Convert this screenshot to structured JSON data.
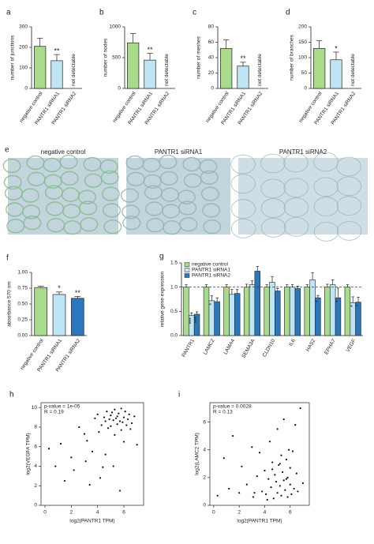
{
  "chart_data": [
    {
      "type": "bar",
      "label": "a",
      "ylabel": "number of junctions",
      "categories": [
        "negative control",
        "PANTR1 siRNA1",
        "PANTR1 siRNA2"
      ],
      "values": [
        205,
        135,
        null
      ],
      "errors": [
        40,
        30,
        null
      ],
      "colors": [
        "#a8dc8c",
        "#bfe4f3",
        "#bfe4f3"
      ],
      "annotations": [
        null,
        "**",
        null
      ],
      "na_label": "not detectable",
      "ylim": [
        0,
        300
      ],
      "yticks": [
        0,
        100,
        200,
        300
      ]
    },
    {
      "type": "bar",
      "label": "b",
      "ylabel": "number of nodes",
      "categories": [
        "negative control",
        "PANTR1 siRNA1",
        "PANTR1 siRNA2"
      ],
      "values": [
        740,
        460,
        null
      ],
      "errors": [
        150,
        110,
        null
      ],
      "colors": [
        "#a8dc8c",
        "#bfe4f3",
        "#bfe4f3"
      ],
      "annotations": [
        null,
        "**",
        null
      ],
      "na_label": "not detectable",
      "ylim": [
        0,
        1000
      ],
      "yticks": [
        0,
        500,
        1000
      ]
    },
    {
      "type": "bar",
      "label": "c",
      "ylabel": "number of meshes",
      "categories": [
        "negative control",
        "PANTR1 siRNA1",
        "PANTR1 siRNA2"
      ],
      "values": [
        52,
        29,
        null
      ],
      "errors": [
        11,
        5,
        null
      ],
      "colors": [
        "#a8dc8c",
        "#bfe4f3",
        "#bfe4f3"
      ],
      "annotations": [
        null,
        "**",
        null
      ],
      "na_label": "not detectable",
      "ylim": [
        0,
        80
      ],
      "yticks": [
        0,
        20,
        40,
        60,
        80
      ]
    },
    {
      "type": "bar",
      "label": "d",
      "ylabel": "number of branches",
      "categories": [
        "negative control",
        "PANTR1 siRNA1",
        "PANTR1 siRNA2"
      ],
      "values": [
        130,
        93,
        null
      ],
      "errors": [
        25,
        25,
        null
      ],
      "colors": [
        "#a8dc8c",
        "#bfe4f3",
        "#bfe4f3"
      ],
      "annotations": [
        null,
        "*",
        null
      ],
      "na_label": "not detectable",
      "ylim": [
        0,
        200
      ],
      "yticks": [
        0,
        50,
        100,
        150,
        200
      ]
    },
    {
      "type": "image",
      "label": "e",
      "titles": [
        "negative control",
        "PANTR1 siRNA1",
        "PANTR1 siRNA2"
      ]
    },
    {
      "type": "bar",
      "label": "f",
      "ylabel": "absorbance 570 nm",
      "categories": [
        "negative control",
        "PANTR1 siRNA1",
        "PANTR1 siRNA2"
      ],
      "values": [
        0.76,
        0.65,
        0.59
      ],
      "errors": [
        0.02,
        0.04,
        0.03
      ],
      "colors": [
        "#a8dc8c",
        "#bfe4f3",
        "#2a78bb"
      ],
      "annotations": [
        null,
        "*",
        "**"
      ],
      "ylim": [
        0,
        1.0
      ],
      "yticks": [
        {
          "value": 0,
          "label": "0.00"
        },
        {
          "value": 0.25,
          "label": "0.25"
        },
        {
          "value": 0.5,
          "label": "0.50"
        },
        {
          "value": 0.75,
          "label": "0.75"
        },
        {
          "value": 1,
          "label": "1.00"
        }
      ]
    },
    {
      "type": "grouped_bar",
      "label": "g",
      "ylabel": "relative gene expression",
      "categories": [
        "PANTR1",
        "LAMC2",
        "LAMA4",
        "SEMA3A",
        "CLDN10",
        "IL6",
        "HAS2",
        "EPHA7",
        "VEGF"
      ],
      "series": [
        {
          "name": "negative control",
          "color": "#a8dc8c",
          "values": [
            1,
            1,
            1,
            1,
            1,
            1,
            1,
            1,
            1
          ],
          "errors": [
            0.05,
            0.05,
            0.05,
            0.06,
            0.05,
            0.05,
            0.05,
            0.06,
            0.05
          ],
          "stars": [
            null,
            null,
            null,
            null,
            null,
            null,
            null,
            null,
            null
          ]
        },
        {
          "name": "PANTR1 siRNA1",
          "color": "#bfe4f3",
          "values": [
            0.42,
            0.72,
            0.85,
            1.05,
            1.1,
            1.0,
            1.15,
            1.05,
            0.68
          ],
          "errors": [
            0.05,
            0.1,
            0.1,
            0.08,
            0.12,
            0.05,
            0.15,
            0.1,
            0.12
          ],
          "stars": [
            "***",
            "*",
            null,
            null,
            null,
            null,
            null,
            null,
            "*"
          ]
        },
        {
          "name": "PANTR1 siRNA2",
          "color": "#2a78bb",
          "values": [
            0.44,
            0.7,
            0.87,
            1.33,
            0.92,
            0.97,
            0.78,
            0.78,
            0.69
          ],
          "errors": [
            0.05,
            0.08,
            0.08,
            0.1,
            0.05,
            0.05,
            0.05,
            0.2,
            0.1
          ],
          "stars": [
            "***",
            null,
            null,
            null,
            null,
            null,
            "*",
            "*",
            "*"
          ]
        }
      ],
      "hline": 1,
      "ylim": [
        0,
        1.5
      ],
      "yticks": [
        {
          "value": 0,
          "label": "0.0"
        },
        {
          "value": 0.5,
          "label": "0.5"
        },
        {
          "value": 1,
          "label": "1.0"
        },
        {
          "value": 1.5,
          "label": "1.5"
        }
      ]
    },
    {
      "type": "scatter",
      "label": "h",
      "xlabel": "log2(PANTR1 TPM)",
      "ylabel": "log2(VEGFA TPM)",
      "annotations": [
        "p-value = 1e-05",
        "R = 0.19"
      ],
      "xlim": [
        -0.3,
        7.5
      ],
      "ylim": [
        0,
        10.5
      ],
      "xticks": [
        0,
        2,
        4,
        6
      ],
      "yticks": [
        0,
        2,
        4,
        6,
        8,
        10
      ],
      "x": [
        0.3,
        0.8,
        1.2,
        1.5,
        2.0,
        2.2,
        2.6,
        3.0,
        3.1,
        3.4,
        3.6,
        3.8,
        4.0,
        4.1,
        4.3,
        4.4,
        4.5,
        4.6,
        4.7,
        4.8,
        4.9,
        5.0,
        5.0,
        5.1,
        5.2,
        5.3,
        5.3,
        5.4,
        5.5,
        5.5,
        5.6,
        5.7,
        5.8,
        5.8,
        5.9,
        6.0,
        6.0,
        6.1,
        6.2,
        6.3,
        6.4,
        6.5,
        6.6,
        6.8,
        7.0,
        4.2,
        4.6,
        5.2,
        5.7,
        3.2
      ],
      "y": [
        5.8,
        4.0,
        6.3,
        2.5,
        4.9,
        3.6,
        8.0,
        7.3,
        4.5,
        2.1,
        5.5,
        8.9,
        9.3,
        7.5,
        8.2,
        3.9,
        9.0,
        8.6,
        9.6,
        7.9,
        8.8,
        9.2,
        8.1,
        9.5,
        8.7,
        9.8,
        7.2,
        8.9,
        9.1,
        8.3,
        9.4,
        8.6,
        9.9,
        7.7,
        8.5,
        9.0,
        6.5,
        9.6,
        8.2,
        8.8,
        9.3,
        7.8,
        8.4,
        9.1,
        6.2,
        2.8,
        5.2,
        4.0,
        1.5,
        6.6
      ]
    },
    {
      "type": "scatter",
      "label": "i",
      "xlabel": "log2(PANTR1 TPM)",
      "ylabel": "log2(LAMC2 TPM)",
      "annotations": [
        "p-value = 0.0028",
        "R = 0.13"
      ],
      "xlim": [
        -0.3,
        7.5
      ],
      "ylim": [
        0,
        7.4
      ],
      "xticks": [
        0,
        2,
        4,
        6
      ],
      "yticks": [
        0,
        2,
        4,
        6
      ],
      "x": [
        0.3,
        0.8,
        1.2,
        1.5,
        2.0,
        2.2,
        2.6,
        3.0,
        3.1,
        3.4,
        3.6,
        3.8,
        4.0,
        4.1,
        4.3,
        4.4,
        4.5,
        4.6,
        4.7,
        4.8,
        4.9,
        5.0,
        5.0,
        5.1,
        5.2,
        5.3,
        5.3,
        5.4,
        5.5,
        5.5,
        5.6,
        5.7,
        5.8,
        5.8,
        5.9,
        6.0,
        6.0,
        6.1,
        6.2,
        6.3,
        6.4,
        6.5,
        6.6,
        6.8,
        7.0,
        4.2,
        4.6,
        5.2,
        5.7,
        3.2
      ],
      "y": [
        0.7,
        3.4,
        1.2,
        5.0,
        0.9,
        2.8,
        1.5,
        4.2,
        0.6,
        2.1,
        3.8,
        1.0,
        2.5,
        0.8,
        1.9,
        4.6,
        1.3,
        3.1,
        0.5,
        2.2,
        1.7,
        5.5,
        0.9,
        2.9,
        1.4,
        3.6,
        0.7,
        2.4,
        1.8,
        6.2,
        1.1,
        3.3,
        2.0,
        0.6,
        4.0,
        1.5,
        2.7,
        0.8,
        3.9,
        1.2,
        5.8,
        2.3,
        1.0,
        7.0,
        1.6,
        0.4,
        2.6,
        3.0,
        1.9,
        0.9
      ]
    }
  ]
}
